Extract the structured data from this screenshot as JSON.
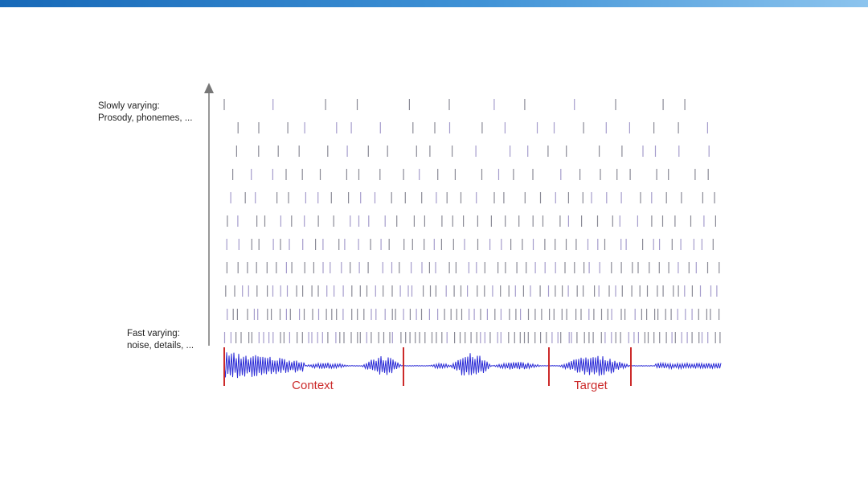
{
  "labels": {
    "slow_title": "Slowly varying:",
    "slow_detail": "Prosody, phonemes, ...",
    "fast_title": "Fast varying:",
    "fast_detail": "noise, details, ..."
  },
  "segments": [
    "Context",
    "Target"
  ]
}
